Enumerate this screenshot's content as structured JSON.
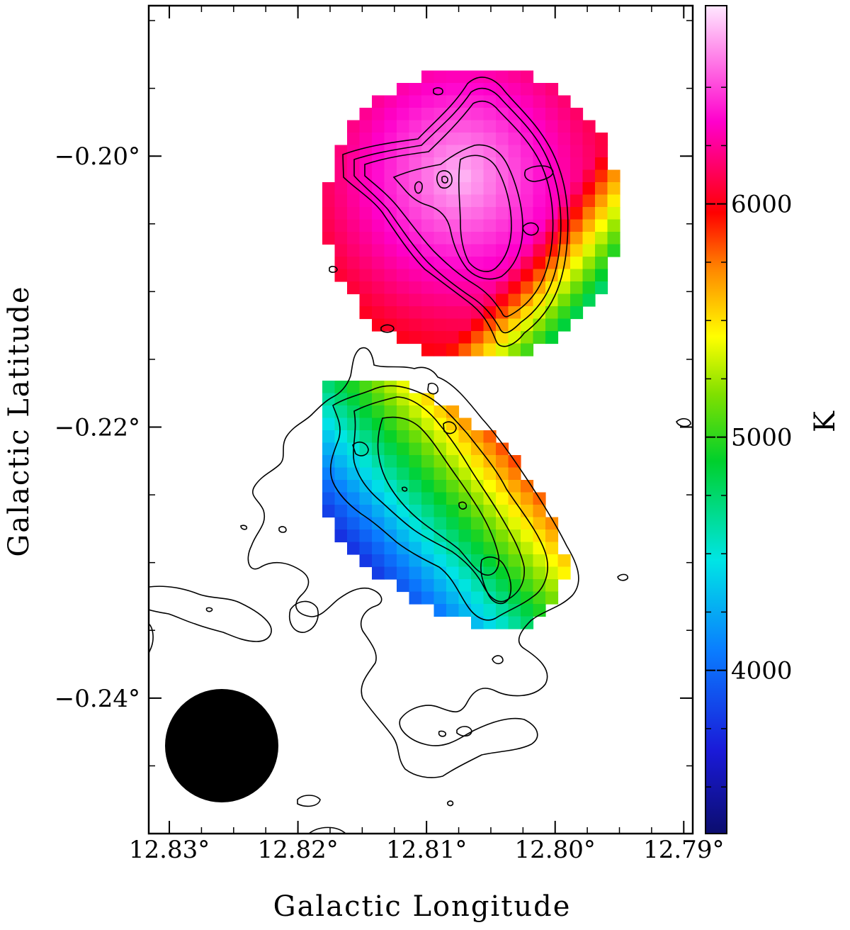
{
  "chart_data": {
    "type": "heatmap",
    "title": "",
    "xlabel": "Galactic Longitude",
    "ylabel": "Galactic Latitude",
    "x_axis_reversed": true,
    "xlim": [
      12.8316,
      12.7893
    ],
    "ylim": [
      -0.25,
      -0.1889
    ],
    "x_ticks": [
      12.83,
      12.82,
      12.81,
      12.8,
      12.79
    ],
    "x_tick_labels": [
      "12.83°",
      "12.82°",
      "12.81°",
      "12.80°",
      "12.79°"
    ],
    "y_ticks": [
      -0.2,
      -0.22,
      -0.24
    ],
    "y_tick_labels": [
      "−0.20°",
      "−0.22°",
      "−0.24°"
    ],
    "colorbar": {
      "label": "K",
      "range": [
        3300,
        6850
      ],
      "ticks": [
        4000,
        5000,
        6000
      ],
      "tick_labels": [
        "4000",
        "5000",
        "6000"
      ],
      "colormap": "rainbow (navy → blue → cyan → green → yellow → orange → red → magenta → light pink)"
    },
    "regions": [
      {
        "name": "northern region",
        "center_l": 12.803,
        "center_b": -0.204,
        "temperature_range_K": [
          5000,
          6750
        ],
        "gradient": "hottest (~6750 K) in the interior, falling to ~5000 K at the south-western edge"
      },
      {
        "name": "southern region",
        "center_l": 12.808,
        "center_b": -0.225,
        "temperature_range_K": [
          3300,
          6300
        ],
        "gradient": "~3300 K at the south-east edge rising to ~6300 K at the north-west edge"
      }
    ],
    "beam": {
      "center_l": 12.8256,
      "center_b": -0.2425,
      "diameter_deg": 0.0085,
      "color": "#000000"
    },
    "grid": false
  }
}
